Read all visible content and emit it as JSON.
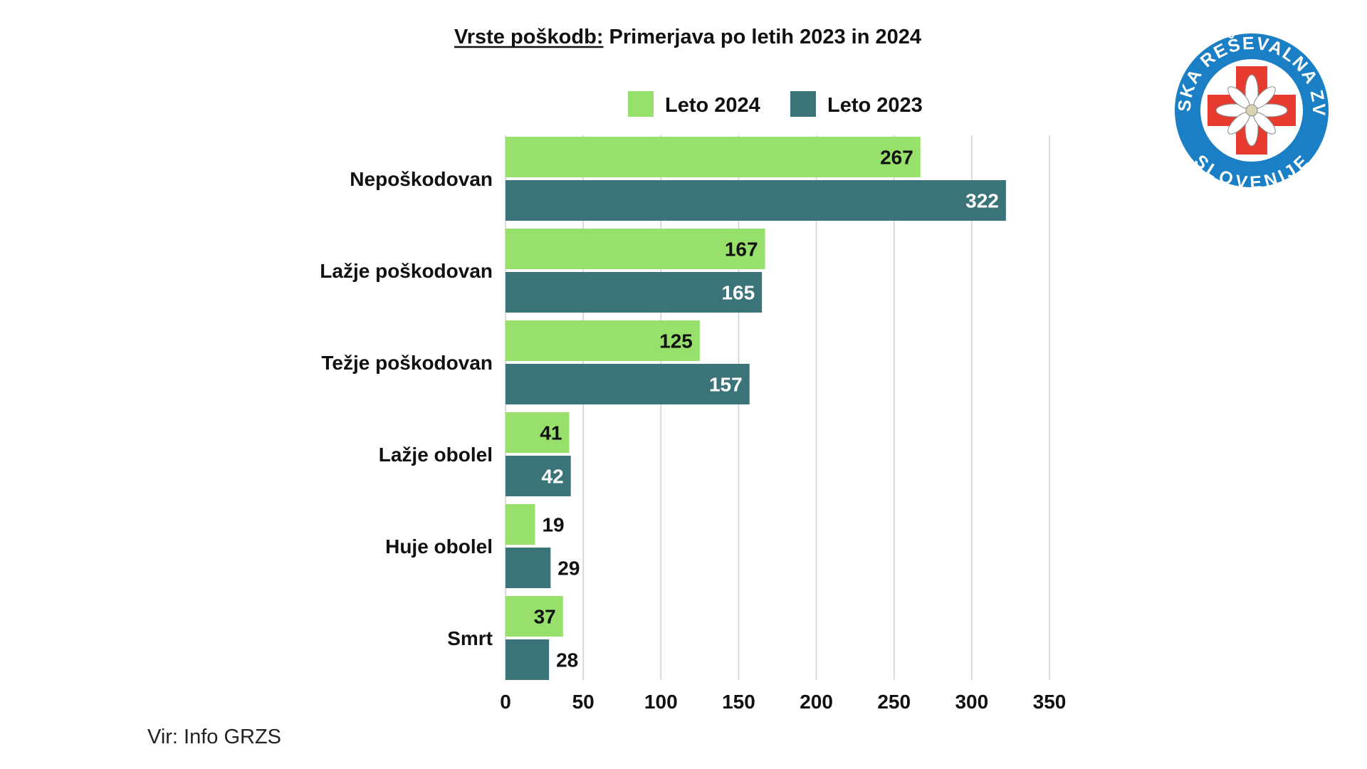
{
  "chart_data": {
    "type": "bar",
    "orientation": "horizontal",
    "title_underlined": "Vrste poškodb:",
    "title_rest": " Primerjava po letih 2023 in 2024",
    "categories": [
      "Nepoškodovan",
      "Lažje poškodovan",
      "Težje poškodovan",
      "Lažje obolel",
      "Huje obolel",
      "Smrt"
    ],
    "series": [
      {
        "name": "Leto 2024",
        "color": "#98e06c",
        "label_color": "#111111",
        "values": [
          267,
          167,
          125,
          41,
          19,
          37
        ]
      },
      {
        "name": "Leto 2023",
        "color": "#3b7478",
        "label_color": "#ffffff",
        "values": [
          322,
          165,
          157,
          42,
          29,
          28
        ]
      }
    ],
    "xlim": [
      0,
      350
    ],
    "xticks": [
      0,
      50,
      100,
      150,
      200,
      250,
      300,
      350
    ],
    "grid": "vertical",
    "legend_position": "top"
  },
  "source": "Vir: Info GRZS",
  "logo": {
    "top_text": "GORSKA REŠEVALNA ZVEZA",
    "bottom_text": "SLOVENIJE",
    "ring_color": "#1a7fc4",
    "cross_color": "#e63b2e"
  }
}
